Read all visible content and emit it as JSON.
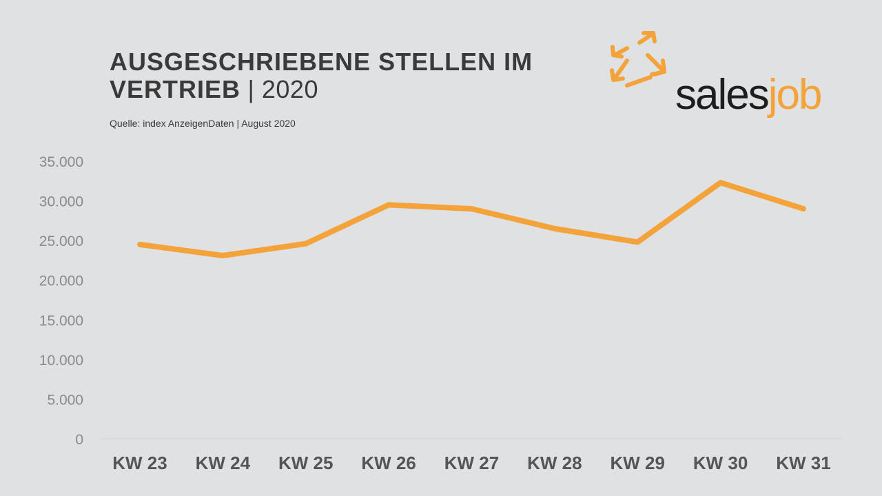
{
  "header": {
    "title_bold": "AUSGESCHRIEBENE STELLEN IM VERTRIEB",
    "title_sep": " | ",
    "title_year": "2020",
    "source": "Quelle: index AnzeigenDaten  |  August 2020"
  },
  "logo": {
    "word_dark": "sales",
    "word_accent": "job",
    "icon": "arrows-out-icon"
  },
  "colors": {
    "background": "#dfe1e3",
    "line": "#f4a33a",
    "text": "#3a3a3a"
  },
  "chart_data": {
    "type": "line",
    "title": "AUSGESCHRIEBENE STELLEN IM VERTRIEB | 2020",
    "xlabel": "",
    "ylabel": "",
    "categories": [
      "KW 23",
      "KW 24",
      "KW 25",
      "KW 26",
      "KW 27",
      "KW 28",
      "KW 29",
      "KW 30",
      "KW 31"
    ],
    "series": [
      {
        "values": [
          24500,
          23100,
          24600,
          29500,
          29000,
          26500,
          24800,
          32300,
          29000
        ]
      }
    ],
    "ylim": [
      0,
      35000
    ],
    "yticks": [
      0,
      5000,
      10000,
      15000,
      20000,
      25000,
      30000,
      35000
    ],
    "ytick_labels": [
      "0",
      "5.000",
      "10.000",
      "15.000",
      "20.000",
      "25.000",
      "30.000",
      "35.000"
    ],
    "grid": false,
    "legend": "none"
  }
}
